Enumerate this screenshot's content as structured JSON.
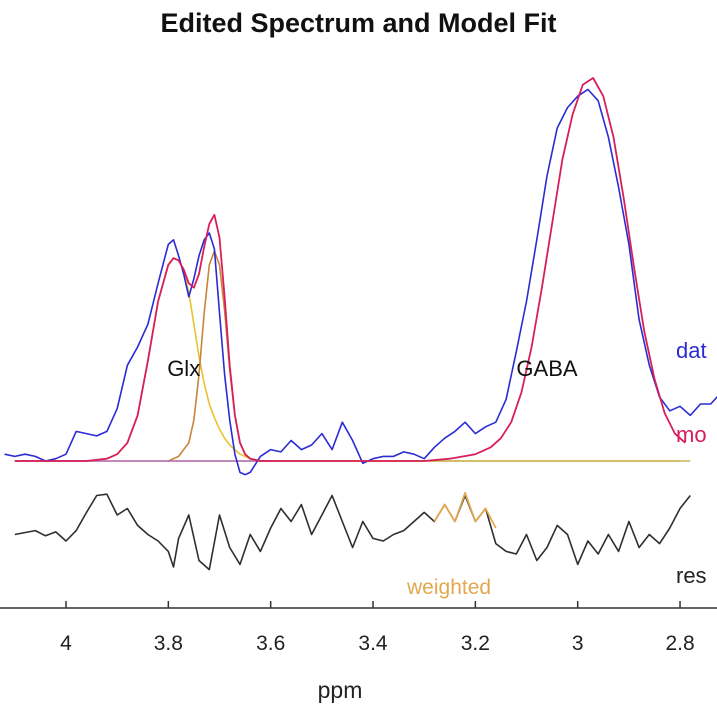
{
  "chart_data": {
    "type": "line",
    "title": "Edited Spectrum and Model Fit",
    "xlabel": "ppm",
    "ylabel": "",
    "x_reversed": true,
    "xlim": [
      4.12,
      2.71
    ],
    "grid": false,
    "x_ticks": [
      4,
      3.8,
      3.6,
      3.4,
      3.2,
      3,
      2.8
    ],
    "peak_labels": [
      {
        "text": "Glx",
        "x": 3.77
      },
      {
        "text": "GABA",
        "x": 3.06
      }
    ],
    "legend": {
      "placement": "right, inline at end of traces",
      "entries": [
        {
          "text": "dat",
          "color": "#2b2bd6"
        },
        {
          "text": "mo",
          "color": "#d81f5a"
        },
        {
          "text": "res",
          "color": "#222222"
        }
      ]
    },
    "annotations": [
      {
        "text": "weighted",
        "color": "#e3a84f"
      }
    ],
    "series": [
      {
        "role": "data",
        "color": "#2b2bd6",
        "x": [
          4.12,
          4.1,
          4.08,
          4.06,
          4.04,
          4.02,
          4.0,
          3.98,
          3.96,
          3.94,
          3.92,
          3.9,
          3.88,
          3.86,
          3.84,
          3.82,
          3.8,
          3.79,
          3.78,
          3.77,
          3.76,
          3.75,
          3.74,
          3.73,
          3.72,
          3.71,
          3.7,
          3.69,
          3.68,
          3.67,
          3.66,
          3.65,
          3.64,
          3.62,
          3.6,
          3.58,
          3.56,
          3.54,
          3.52,
          3.5,
          3.48,
          3.46,
          3.44,
          3.42,
          3.4,
          3.38,
          3.36,
          3.34,
          3.32,
          3.3,
          3.28,
          3.26,
          3.24,
          3.22,
          3.2,
          3.18,
          3.16,
          3.14,
          3.12,
          3.1,
          3.08,
          3.06,
          3.04,
          3.02,
          3.0,
          2.98,
          2.96,
          2.94,
          2.92,
          2.9,
          2.88,
          2.86,
          2.84,
          2.82,
          2.8,
          2.78,
          2.76,
          2.74,
          2.72
        ],
        "y": [
          0.03,
          0.02,
          0.03,
          0.02,
          0.0,
          0.01,
          0.03,
          0.13,
          0.12,
          0.11,
          0.13,
          0.23,
          0.42,
          0.5,
          0.6,
          0.78,
          0.95,
          0.97,
          0.9,
          0.82,
          0.72,
          0.8,
          0.9,
          0.97,
          1.0,
          0.93,
          0.65,
          0.38,
          0.18,
          0.03,
          -0.05,
          -0.06,
          -0.05,
          0.02,
          0.05,
          0.04,
          0.09,
          0.05,
          0.07,
          0.12,
          0.05,
          0.17,
          0.09,
          -0.01,
          0.01,
          0.02,
          0.02,
          0.04,
          0.03,
          0.01,
          0.06,
          0.1,
          0.13,
          0.17,
          0.12,
          0.15,
          0.17,
          0.27,
          0.48,
          0.7,
          0.97,
          1.25,
          1.46,
          1.55,
          1.6,
          1.63,
          1.58,
          1.42,
          1.2,
          0.95,
          0.62,
          0.42,
          0.28,
          0.22,
          0.24,
          0.2,
          0.25,
          0.25,
          0.3
        ]
      },
      {
        "role": "model",
        "color": "#d81f5a",
        "x": [
          4.1,
          4.0,
          3.96,
          3.92,
          3.9,
          3.88,
          3.86,
          3.84,
          3.82,
          3.8,
          3.79,
          3.78,
          3.77,
          3.76,
          3.75,
          3.74,
          3.73,
          3.72,
          3.71,
          3.7,
          3.69,
          3.68,
          3.67,
          3.66,
          3.65,
          3.64,
          3.62,
          3.6,
          3.5,
          3.4,
          3.3,
          3.25,
          3.2,
          3.17,
          3.15,
          3.13,
          3.11,
          3.09,
          3.07,
          3.05,
          3.03,
          3.01,
          2.99,
          2.97,
          2.95,
          2.93,
          2.91,
          2.89,
          2.87,
          2.85,
          2.83,
          2.81,
          2.79
        ],
        "y": [
          0.0,
          0.0,
          0.0,
          0.01,
          0.03,
          0.08,
          0.2,
          0.44,
          0.7,
          0.86,
          0.89,
          0.88,
          0.84,
          0.78,
          0.76,
          0.82,
          0.94,
          1.04,
          1.08,
          0.98,
          0.72,
          0.42,
          0.2,
          0.08,
          0.03,
          0.01,
          0.0,
          0.0,
          0.0,
          0.0,
          0.0,
          0.01,
          0.03,
          0.06,
          0.1,
          0.17,
          0.3,
          0.5,
          0.76,
          1.04,
          1.32,
          1.52,
          1.65,
          1.68,
          1.6,
          1.42,
          1.15,
          0.85,
          0.57,
          0.36,
          0.21,
          0.12,
          0.08
        ]
      },
      {
        "role": "Glx component (broad)",
        "color": "#e8c232",
        "x": [
          4.0,
          3.95,
          3.92,
          3.9,
          3.88,
          3.86,
          3.84,
          3.82,
          3.8,
          3.79,
          3.78,
          3.77,
          3.76,
          3.75,
          3.74,
          3.73,
          3.72,
          3.71,
          3.7,
          3.69,
          3.68,
          3.67,
          3.66,
          3.65,
          3.64,
          3.62,
          3.6,
          3.5,
          3.4,
          3.3,
          3.2,
          3.1,
          3.0,
          2.9,
          2.8
        ],
        "y": [
          0.0,
          0.0,
          0.01,
          0.03,
          0.08,
          0.2,
          0.44,
          0.7,
          0.86,
          0.89,
          0.88,
          0.84,
          0.74,
          0.6,
          0.46,
          0.34,
          0.25,
          0.19,
          0.14,
          0.1,
          0.07,
          0.05,
          0.03,
          0.02,
          0.01,
          0.0,
          0.0,
          0.0,
          0.0,
          0.0,
          0.0,
          0.0,
          0.0,
          0.0,
          0.0
        ]
      },
      {
        "role": "Glx component (narrow)",
        "color": "#c9833a",
        "x": [
          3.8,
          3.78,
          3.76,
          3.75,
          3.74,
          3.73,
          3.72,
          3.71,
          3.7,
          3.69,
          3.68,
          3.67,
          3.66,
          3.65,
          3.64,
          3.62
        ],
        "y": [
          0.0,
          0.02,
          0.08,
          0.18,
          0.38,
          0.65,
          0.86,
          0.92,
          0.86,
          0.66,
          0.4,
          0.2,
          0.08,
          0.03,
          0.01,
          0.0
        ]
      },
      {
        "role": "baseline",
        "color": "#b36fbf",
        "x": [
          4.1,
          2.78
        ],
        "y": [
          0.0,
          0.0
        ]
      },
      {
        "role": "residual",
        "color": "#2b3030",
        "x": [
          4.1,
          4.06,
          4.04,
          4.02,
          4.0,
          3.98,
          3.96,
          3.94,
          3.92,
          3.9,
          3.88,
          3.86,
          3.84,
          3.82,
          3.8,
          3.79,
          3.78,
          3.76,
          3.74,
          3.72,
          3.7,
          3.68,
          3.66,
          3.64,
          3.62,
          3.6,
          3.58,
          3.56,
          3.54,
          3.52,
          3.5,
          3.48,
          3.46,
          3.44,
          3.42,
          3.4,
          3.38,
          3.36,
          3.34,
          3.32,
          3.3,
          3.28,
          3.26,
          3.24,
          3.22,
          3.2,
          3.18,
          3.16,
          3.14,
          3.12,
          3.1,
          3.08,
          3.06,
          3.04,
          3.02,
          3.0,
          2.98,
          2.96,
          2.94,
          2.92,
          2.9,
          2.88,
          2.86,
          2.84,
          2.82,
          2.8,
          2.78
        ],
        "y": [
          -0.05,
          -0.02,
          -0.06,
          -0.03,
          -0.1,
          -0.02,
          0.12,
          0.25,
          0.26,
          0.1,
          0.15,
          0.02,
          -0.05,
          -0.1,
          -0.18,
          -0.3,
          -0.08,
          0.1,
          -0.25,
          -0.32,
          0.1,
          -0.15,
          -0.28,
          -0.05,
          -0.18,
          0.0,
          0.15,
          0.05,
          0.18,
          -0.05,
          0.1,
          0.25,
          0.05,
          -0.15,
          0.05,
          -0.08,
          -0.1,
          -0.05,
          -0.02,
          0.05,
          0.12,
          0.05,
          0.18,
          0.05,
          0.25,
          0.05,
          0.15,
          -0.12,
          -0.18,
          -0.2,
          -0.05,
          -0.25,
          -0.15,
          0.02,
          -0.05,
          -0.28,
          -0.1,
          -0.2,
          -0.05,
          -0.18,
          0.05,
          -0.15,
          -0.05,
          -0.12,
          0.0,
          0.15,
          0.25
        ]
      },
      {
        "role": "residual (weighted region)",
        "color": "#e3a84f",
        "x": [
          3.28,
          3.26,
          3.24,
          3.22,
          3.2,
          3.18,
          3.16
        ],
        "y": [
          0.05,
          0.18,
          0.05,
          0.27,
          0.05,
          0.15,
          0.0
        ]
      }
    ]
  }
}
